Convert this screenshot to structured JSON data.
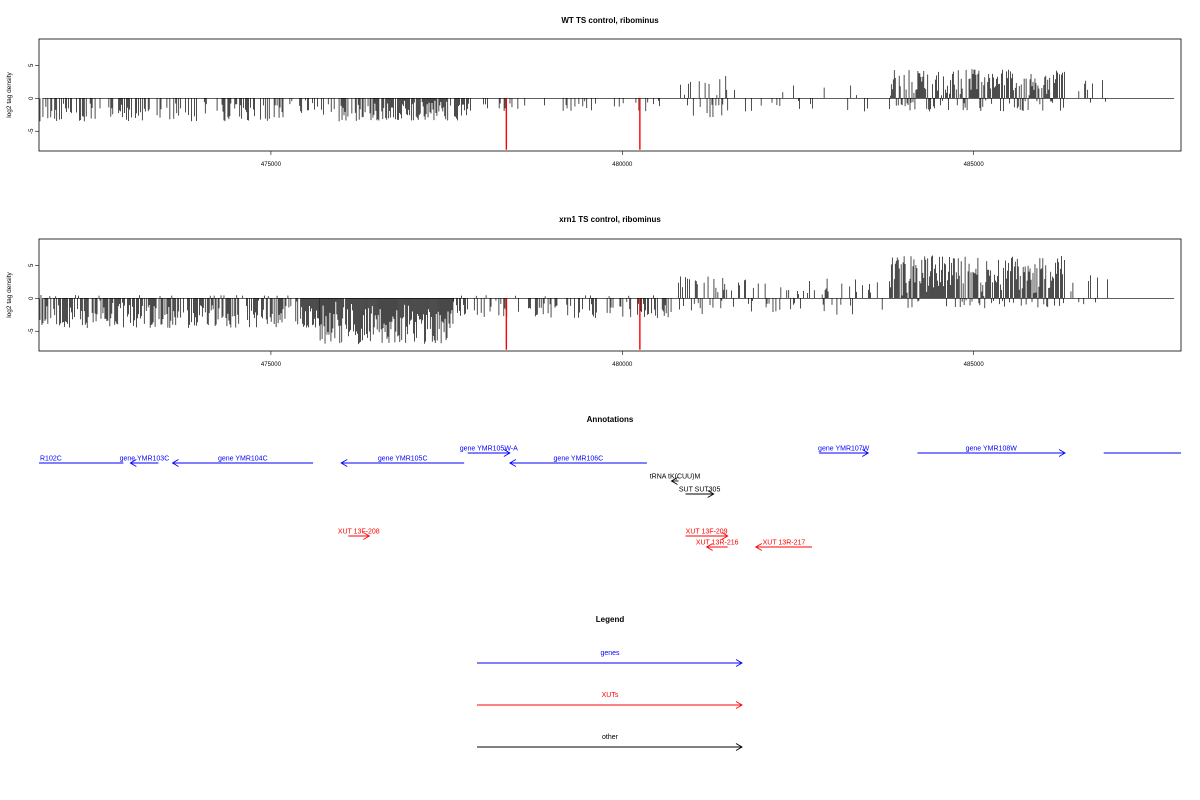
{
  "chart_data": [
    {
      "type": "bar",
      "title": "WT TS control, ribominus",
      "ylabel": "log2 tag density",
      "xlabel": "",
      "xlim": [
        471700,
        487950
      ],
      "ylim": [
        -8,
        9
      ],
      "xticks": [
        475000,
        480000,
        485000
      ],
      "yticks": [
        -5,
        0,
        5
      ],
      "profile": [
        {
          "from": 471700,
          "to": 476200,
          "min": -3.5,
          "max": 0,
          "density": 0.45
        },
        {
          "from": 476200,
          "to": 477800,
          "min": -3.5,
          "max": 0,
          "density": 0.75
        },
        {
          "from": 477800,
          "to": 480600,
          "min": -2,
          "max": 0,
          "density": 0.2
        },
        {
          "from": 480800,
          "to": 481500,
          "min": -3,
          "max": 3.5,
          "density": 0.5
        },
        {
          "from": 481500,
          "to": 483800,
          "min": -2,
          "max": 2,
          "density": 0.12
        },
        {
          "from": 483800,
          "to": 486300,
          "min": -2,
          "max": 4.5,
          "density": 0.95
        },
        {
          "from": 486300,
          "to": 486900,
          "min": -1,
          "max": 3,
          "density": 0.15
        }
      ],
      "highlight_bars": [
        {
          "x": 478350,
          "y": -7.8,
          "color": "#ff0000"
        },
        {
          "x": 480250,
          "y": -7.8,
          "color": "#ff0000"
        }
      ]
    },
    {
      "type": "bar",
      "title": "xrn1 TS control, ribominus",
      "ylabel": "log2 tag density",
      "xlabel": "",
      "xlim": [
        471700,
        487950
      ],
      "ylim": [
        -8,
        9
      ],
      "xticks": [
        475000,
        480000,
        485000
      ],
      "yticks": [
        -5,
        0,
        5
      ],
      "profile": [
        {
          "from": 471700,
          "to": 475700,
          "min": -4.5,
          "max": 0.5,
          "density": 0.85
        },
        {
          "from": 475700,
          "to": 477600,
          "min": -7,
          "max": 0,
          "density": 1.0
        },
        {
          "from": 477600,
          "to": 480700,
          "min": -3,
          "max": 0.5,
          "density": 0.45
        },
        {
          "from": 480800,
          "to": 481500,
          "min": -2.5,
          "max": 3.5,
          "density": 0.6
        },
        {
          "from": 481500,
          "to": 483800,
          "min": -2.5,
          "max": 3,
          "density": 0.3
        },
        {
          "from": 483800,
          "to": 486300,
          "min": -1.5,
          "max": 6.5,
          "density": 1.0
        },
        {
          "from": 486300,
          "to": 486950,
          "min": -1,
          "max": 3.5,
          "density": 0.25
        }
      ],
      "highlight_bars": [
        {
          "x": 478350,
          "y": -7.8,
          "color": "#ff0000"
        },
        {
          "x": 480250,
          "y": -7.8,
          "color": "#ff0000"
        }
      ]
    }
  ],
  "annotations": {
    "title": "Annotations",
    "xlim": [
      471700,
      487950
    ],
    "features": [
      {
        "label": "R102C",
        "start": 471700,
        "end": 472900,
        "dir": "none",
        "lane": 0,
        "color": "#0000ff"
      },
      {
        "label": "gene YMR103C",
        "start": 473000,
        "end": 473400,
        "dir": "left",
        "lane": 0,
        "color": "#0000ff"
      },
      {
        "label": "gene YMR104C",
        "start": 473600,
        "end": 475600,
        "dir": "left",
        "lane": 0,
        "color": "#0000ff"
      },
      {
        "label": "gene YMR105C",
        "start": 476000,
        "end": 477750,
        "dir": "left",
        "lane": 0,
        "color": "#0000ff"
      },
      {
        "label": "gene YMR105W-A",
        "start": 477800,
        "end": 478400,
        "dir": "right",
        "lane": -1,
        "color": "#0000ff"
      },
      {
        "label": "gene YMR106C",
        "start": 478400,
        "end": 480350,
        "dir": "left",
        "lane": 0,
        "color": "#0000ff"
      },
      {
        "label": "gene YMR107W",
        "start": 482800,
        "end": 483500,
        "dir": "right",
        "lane": -1,
        "color": "#0000ff"
      },
      {
        "label": "gene YMR108W",
        "start": 484200,
        "end": 486300,
        "dir": "right",
        "lane": -1,
        "color": "#0000ff"
      },
      {
        "label": "",
        "start": 486850,
        "end": 487950,
        "dir": "none",
        "lane": -1,
        "color": "#0000ff"
      },
      {
        "label": "tRNA tK(CUU)M",
        "start": 480700,
        "end": 480800,
        "dir": "left",
        "lane": 1,
        "color": "#000000"
      },
      {
        "label": "SUT SUT305",
        "start": 480900,
        "end": 481300,
        "dir": "right",
        "lane": 2,
        "color": "#000000"
      },
      {
        "label": "XUT 13F-208",
        "start": 476100,
        "end": 476400,
        "dir": "right",
        "lane": 5,
        "color": "#ff0000"
      },
      {
        "label": "XUT 13F-209",
        "start": 480900,
        "end": 481500,
        "dir": "right",
        "lane": 5,
        "color": "#ff0000"
      },
      {
        "label": "XUT 13R-216",
        "start": 481200,
        "end": 481500,
        "dir": "left",
        "lane": 6,
        "color": "#ff0000"
      },
      {
        "label": "XUT 13R-217",
        "start": 481900,
        "end": 482700,
        "dir": "left",
        "lane": 6,
        "color": "#ff0000"
      }
    ]
  },
  "legend": {
    "title": "Legend",
    "items": [
      {
        "label": "genes",
        "color": "#0000ff"
      },
      {
        "label": "XUTs",
        "color": "#ff0000"
      },
      {
        "label": "other",
        "color": "#000000"
      }
    ]
  }
}
